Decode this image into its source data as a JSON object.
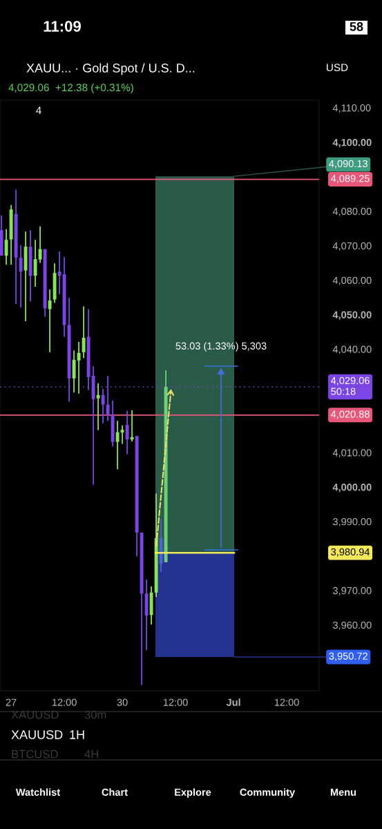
{
  "chart_data": {
    "type": "candlestick",
    "title": "XAUU... · Gold Spot / U.S. D...",
    "subtitle": "4,029.06  +12.38 (+0.31%)",
    "categories": [
      null,
      null,
      "27",
      null,
      null,
      null,
      null,
      null,
      null,
      null,
      null,
      null,
      null,
      "12:00",
      null,
      null,
      null,
      null,
      null,
      null,
      null,
      null,
      null,
      null,
      null,
      "30",
      null,
      null,
      null,
      null,
      null,
      null,
      null,
      null,
      null,
      null,
      "12:00",
      null,
      null,
      null,
      null,
      null,
      null,
      null,
      null,
      null,
      null,
      null,
      "Jul",
      null,
      null,
      null,
      null,
      null,
      null,
      null,
      null,
      null,
      null,
      "12:00",
      null,
      null,
      null,
      null,
      null,
      null
    ],
    "ohlc": [
      [
        4074.5,
        4078.8,
        4067.1,
        4067.1
      ],
      [
        4067.1,
        4074.8,
        4064.5,
        4071.7
      ],
      [
        4071.8,
        4081.8,
        4064.5,
        4080.5
      ],
      [
        4079.2,
        4086.2,
        4053.1,
        4066.5
      ],
      [
        4066.5,
        4070.1,
        4052.1,
        4062.5
      ],
      [
        4062.8,
        4074.1,
        4048.1,
        4069.7
      ],
      [
        4069.7,
        4074.5,
        4053.8,
        4061.3
      ],
      [
        4061.3,
        4071.7,
        4058.1,
        4066.1
      ],
      [
        4066.0,
        4075.6,
        4065.0,
        4069.0
      ],
      [
        4069.0,
        4069.0,
        4049.4,
        4051.8
      ],
      [
        4051.6,
        4057.3,
        4039.1,
        4054.1
      ],
      [
        4054.4,
        4064.9,
        4053.4,
        4062.1
      ],
      [
        4062.5,
        4068.3,
        4055.9,
        4061.3
      ],
      [
        4061.7,
        4066.7,
        4043.6,
        4047.0
      ],
      [
        4047.0,
        4054.9,
        4024.8,
        4031.5
      ],
      [
        4031.5,
        4039.6,
        4027.4,
        4036.9
      ],
      [
        4036.7,
        4042.1,
        4027.1,
        4038.9
      ],
      [
        4039.1,
        4052.4,
        4037.4,
        4043.3
      ],
      [
        4043.6,
        4051.6,
        4028.1,
        4031.9
      ],
      [
        4032.3,
        4035.0,
        4000.7,
        4025.5
      ],
      [
        4025.7,
        4030.1,
        4016.5,
        4026.7
      ],
      [
        4026.7,
        4028.5,
        4018.5,
        4023.9
      ],
      [
        4023.9,
        4032.2,
        4019.2,
        4020.9
      ],
      [
        4020.9,
        4025.1,
        4011.8,
        4013.1
      ],
      [
        4013.1,
        4019.2,
        4005.2,
        4015.9
      ],
      [
        4015.8,
        4017.9,
        4012.5,
        4016.6
      ],
      [
        4018.0,
        4022.1,
        4009.5,
        4013.8
      ],
      [
        4013.8,
        4022.3,
        4013.2,
        4014.5
      ],
      [
        4014.8,
        4014.8,
        3979.9,
        3986.8
      ],
      [
        3986.8,
        3986.8,
        3942.6,
        3969.1
      ],
      [
        3969.1,
        3973.2,
        3952.7,
        3962.7
      ],
      [
        3962.9,
        3971.2,
        3960.1,
        3969.4
      ],
      [
        3969.4,
        3998.1,
        3968.1,
        3985.2
      ],
      [
        3985.2,
        3990.8,
        3975.4,
        3977.8
      ],
      [
        3978.2,
        4033.9,
        3978.2,
        4029.06
      ],
      null,
      null,
      null,
      null,
      null,
      null,
      null,
      null,
      null,
      null,
      null,
      null,
      null,
      null,
      null,
      null,
      null,
      null,
      null,
      null,
      null,
      null,
      null,
      null,
      null,
      null,
      null,
      null,
      null,
      null,
      null
    ],
    "colors": [
      "#7b45e6",
      "#86e35a",
      "#86e35a",
      "#7b45e6",
      "#7b45e6",
      "#86e35a",
      "#7b45e6",
      "#86e35a",
      "#86e35a",
      "#7b45e6",
      "#86e35a",
      "#86e35a",
      "#7b45e6",
      "#7b45e6",
      "#7b45e6",
      "#86e35a",
      "#86e35a",
      "#86e35a",
      "#7b45e6",
      "#7b45e6",
      "#86e35a",
      "#7b45e6",
      "#7b45e6",
      "#7b45e6",
      "#86e35a",
      "#86e35a",
      "#7b45e6",
      "#86e35a",
      "#7b45e6",
      "#7b45e6",
      "#7b45e6",
      "#86e35a",
      "#86e35a",
      "#4f63d6",
      "#6fcf7a",
      null,
      null,
      null,
      null,
      null,
      null,
      null,
      null,
      null,
      null,
      null,
      null,
      null,
      null,
      null,
      null,
      null,
      null,
      null,
      null,
      null,
      null,
      null,
      null,
      null,
      null,
      null,
      null,
      null,
      null,
      null
    ],
    "series": [
      {
        "type": "line",
        "color": "#f2e85a",
        "values": [
          null,
          null,
          null,
          null,
          null,
          null,
          null,
          null,
          null,
          null,
          null,
          null,
          null,
          null,
          null,
          null,
          null,
          null,
          null,
          null,
          null,
          null,
          null,
          null,
          null,
          null,
          null,
          null,
          null,
          null,
          null,
          null,
          3980.94,
          3980.94,
          3980.94,
          3980.94,
          3980.94,
          3980.94,
          3980.94,
          3980.94,
          3980.94,
          3980.94,
          3980.94,
          3980.94,
          3980.94,
          3980.94,
          3980.94,
          3980.94,
          3980.94,
          null,
          null,
          null,
          null,
          null,
          null,
          null,
          null,
          null,
          null,
          null,
          null,
          null,
          null,
          null,
          null,
          null
        ]
      }
    ],
    "ref_lines": [
      {
        "axis": "y",
        "value": 4089.25,
        "label": "4,089.25",
        "color": "#e8577a",
        "line_style": "solid"
      },
      {
        "axis": "y",
        "value": 4020.88,
        "label": "4,020.88",
        "color": "#e8577a",
        "line_style": "solid"
      },
      {
        "axis": "y",
        "value": 4029.06,
        "label": "4,029.06\n50:18",
        "color": "#7b45e6",
        "line_style": "dotted"
      }
    ],
    "bands": [
      {
        "axis": "y",
        "from": 3980.94,
        "to": 4090.13,
        "label": "4,090.13",
        "color": "#2a5a48"
      },
      {
        "axis": "y",
        "from": 3950.72,
        "to": 3980.94,
        "label": "3,950.72",
        "color": "#24338f"
      }
    ],
    "annotations": [
      "53.03 (1.33%) 5,303",
      "3,980.94",
      "11:09",
      "58",
      "USD",
      "4",
      "XAUUSD",
      "30m",
      "XAUUSD",
      "1H",
      "BTCUSD",
      "4H",
      "Watchlist",
      "Chart",
      "Explore",
      "Community",
      "Menu"
    ],
    "ylim": [
      3940.9,
      4112.2
    ],
    "yticks": [
      {
        "value": 3960,
        "label": "3,960.00"
      },
      {
        "value": 3970,
        "label": "3,970.00"
      },
      {
        "value": 3990,
        "label": "3,990.00"
      },
      {
        "value": 4000,
        "label": "4,000.00"
      },
      {
        "value": 4010,
        "label": "4,010.00"
      },
      {
        "value": 4040,
        "label": "4,040.00"
      },
      {
        "value": 4050,
        "label": "4,050.00"
      },
      {
        "value": 4060,
        "label": "4,060.00"
      },
      {
        "value": 4070,
        "label": "4,070.00"
      },
      {
        "value": 4080,
        "label": "4,080.00"
      },
      {
        "value": 4100,
        "label": "4,100.00"
      },
      {
        "value": 4110,
        "label": "4,110.00"
      }
    ],
    "grid": false,
    "legend": false
  }
}
